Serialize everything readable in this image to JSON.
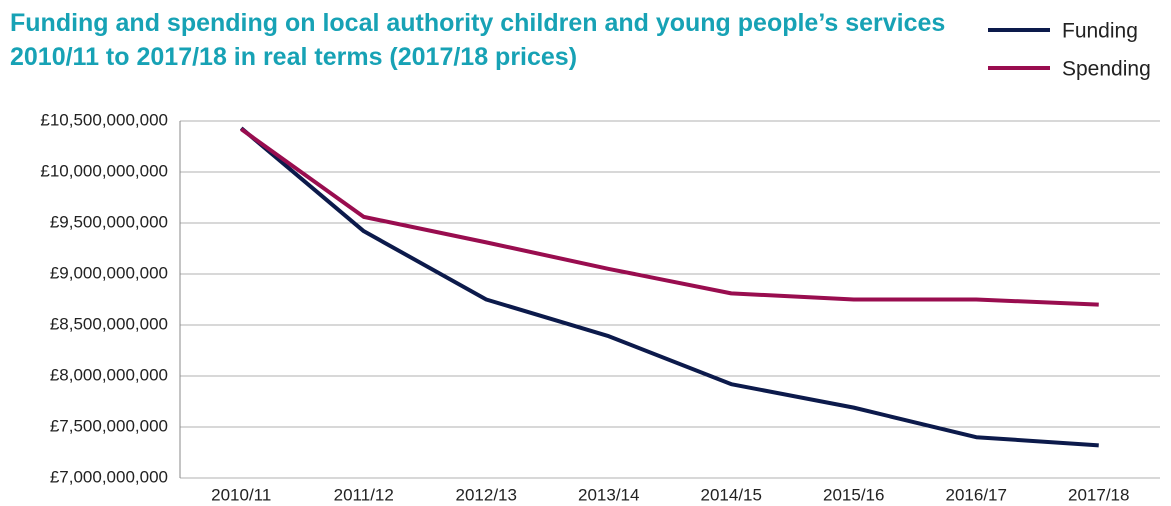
{
  "chart_data": {
    "type": "line",
    "title": "Funding and spending on local authority children and young people’s services 2010/11 to 2017/18 in real terms (2017/18 prices)",
    "categories": [
      "2010/11",
      "2011/12",
      "2012/13",
      "2013/14",
      "2014/15",
      "2015/16",
      "2016/17",
      "2017/18"
    ],
    "series": [
      {
        "name": "Funding",
        "color": "#0c1a4b",
        "values": [
          10430000000,
          9420000000,
          8750000000,
          8390000000,
          7920000000,
          7690000000,
          7400000000,
          7320000000
        ]
      },
      {
        "name": "Spending",
        "color": "#990d4f",
        "values": [
          10420000000,
          9560000000,
          9310000000,
          9050000000,
          8810000000,
          8750000000,
          8750000000,
          8700000000
        ]
      }
    ],
    "ylim": [
      7000000000,
      10500000000
    ],
    "yticks": [
      {
        "value": 7000000000,
        "label": "£7,000,000,000"
      },
      {
        "value": 7500000000,
        "label": "£7,500,000,000"
      },
      {
        "value": 8000000000,
        "label": "£8,000,000,000"
      },
      {
        "value": 8500000000,
        "label": "£8,500,000,000"
      },
      {
        "value": 9000000000,
        "label": "£9,000,000,000"
      },
      {
        "value": 9500000000,
        "label": "£9,500,000,000"
      },
      {
        "value": 10000000000,
        "label": "£10,000,000,000"
      },
      {
        "value": 10500000000,
        "label": "£10,500,000,000"
      }
    ],
    "grid": true,
    "legend": "top-right"
  }
}
